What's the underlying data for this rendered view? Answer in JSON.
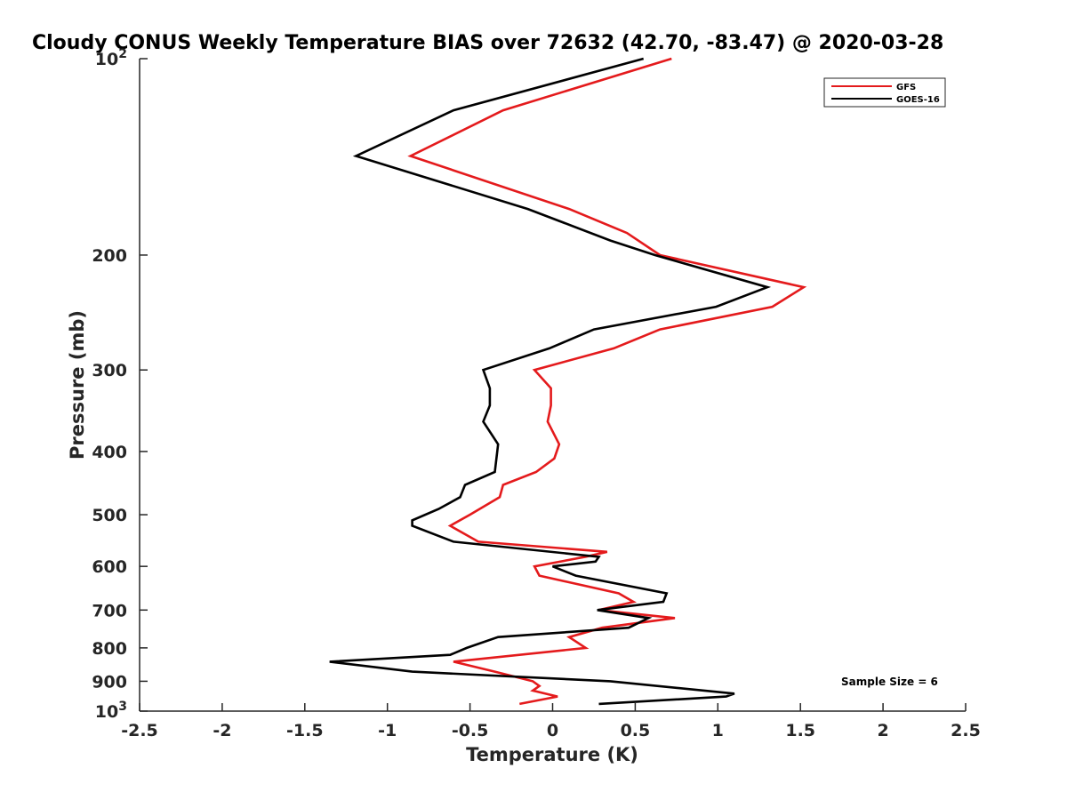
{
  "chart_data": {
    "type": "line",
    "title": "Cloudy CONUS Weekly Temperature BIAS over 72632 (42.70, -83.47) @ 2020-03-28",
    "xlabel": "Temperature (K)",
    "ylabel": "Pressure (mb)",
    "xlim": [
      -2.5,
      2.5
    ],
    "ylim": [
      1000,
      100
    ],
    "y_scale": "log",
    "x_ticks": [
      "-2.5",
      "-2",
      "-1.5",
      "-1",
      "-0.5",
      "0",
      "0.5",
      "1",
      "1.5",
      "2",
      "2.5"
    ],
    "x_tick_values": [
      -2.5,
      -2,
      -1.5,
      -1,
      -0.5,
      0,
      0.5,
      1,
      1.5,
      2,
      2.5
    ],
    "y_ticks": [
      {
        "value": 100,
        "base": "10",
        "exp": "2"
      },
      {
        "value": 200,
        "label": "200"
      },
      {
        "value": 300,
        "label": "300"
      },
      {
        "value": 400,
        "label": "400"
      },
      {
        "value": 500,
        "label": "500"
      },
      {
        "value": 600,
        "label": "600"
      },
      {
        "value": 700,
        "label": "700"
      },
      {
        "value": 800,
        "label": "800"
      },
      {
        "value": 900,
        "label": "900"
      },
      {
        "value": 1000,
        "base": "10",
        "exp": "3"
      }
    ],
    "legend_position": "top-right",
    "grid": false,
    "annotation": "Sample Size = 6",
    "series": [
      {
        "name": "GFS",
        "color": "#e41a1c",
        "points": [
          [
            0.72,
            100
          ],
          [
            -0.3,
            120
          ],
          [
            -0.86,
            141
          ],
          [
            0.1,
            170
          ],
          [
            0.45,
            185
          ],
          [
            0.65,
            200
          ],
          [
            1.52,
            224
          ],
          [
            1.33,
            240
          ],
          [
            0.65,
            260
          ],
          [
            0.37,
            278
          ],
          [
            -0.11,
            300
          ],
          [
            -0.01,
            320
          ],
          [
            -0.01,
            340
          ],
          [
            -0.03,
            360
          ],
          [
            0.04,
            390
          ],
          [
            0.01,
            410
          ],
          [
            -0.1,
            430
          ],
          [
            -0.3,
            450
          ],
          [
            -0.32,
            470
          ],
          [
            -0.5,
            500
          ],
          [
            -0.62,
            520
          ],
          [
            -0.45,
            550
          ],
          [
            0.33,
            570
          ],
          [
            0.2,
            580
          ],
          [
            -0.11,
            600
          ],
          [
            -0.08,
            620
          ],
          [
            0.4,
            660
          ],
          [
            0.49,
            680
          ],
          [
            0.28,
            700
          ],
          [
            0.74,
            720
          ],
          [
            0.3,
            745
          ],
          [
            0.1,
            770
          ],
          [
            0.2,
            800
          ],
          [
            -0.6,
            840
          ],
          [
            -0.35,
            870
          ],
          [
            -0.12,
            900
          ],
          [
            -0.08,
            915
          ],
          [
            -0.12,
            930
          ],
          [
            0.03,
            950
          ],
          [
            -0.2,
            975
          ]
        ]
      },
      {
        "name": "GOES-16",
        "color": "#000000",
        "points": [
          [
            0.55,
            100
          ],
          [
            -0.6,
            120
          ],
          [
            -1.19,
            141
          ],
          [
            -0.15,
            170
          ],
          [
            0.35,
            190
          ],
          [
            0.62,
            200
          ],
          [
            1.3,
            224
          ],
          [
            0.99,
            240
          ],
          [
            0.25,
            260
          ],
          [
            -0.02,
            278
          ],
          [
            -0.42,
            300
          ],
          [
            -0.38,
            320
          ],
          [
            -0.38,
            340
          ],
          [
            -0.42,
            360
          ],
          [
            -0.33,
            390
          ],
          [
            -0.34,
            410
          ],
          [
            -0.35,
            430
          ],
          [
            -0.53,
            450
          ],
          [
            -0.56,
            470
          ],
          [
            -0.69,
            490
          ],
          [
            -0.85,
            510
          ],
          [
            -0.85,
            520
          ],
          [
            -0.6,
            550
          ],
          [
            0.28,
            580
          ],
          [
            0.26,
            590
          ],
          [
            0.0,
            600
          ],
          [
            0.14,
            620
          ],
          [
            0.69,
            660
          ],
          [
            0.67,
            680
          ],
          [
            0.27,
            700
          ],
          [
            0.58,
            720
          ],
          [
            0.46,
            745
          ],
          [
            -0.33,
            770
          ],
          [
            -0.52,
            800
          ],
          [
            -0.62,
            820
          ],
          [
            -1.35,
            840
          ],
          [
            -0.85,
            870
          ],
          [
            0.35,
            900
          ],
          [
            1.1,
            940
          ],
          [
            1.05,
            950
          ],
          [
            0.28,
            975
          ]
        ]
      }
    ]
  }
}
